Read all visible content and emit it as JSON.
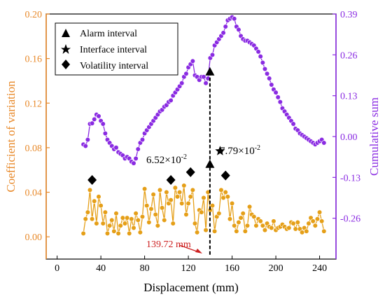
{
  "chart_data": {
    "type": "line",
    "xlabel": "Displacement (mm)",
    "ylabel_left": "Coefficient of variation",
    "ylabel_right": "Cumulative sum",
    "xlim": [
      -10,
      255
    ],
    "ylim_left": [
      -0.02,
      0.2
    ],
    "ylim_right": [
      -0.39,
      0.39
    ],
    "x_ticks": [
      0,
      40,
      80,
      120,
      160,
      200,
      240
    ],
    "y_left_ticks": [
      "0.00",
      "0.04",
      "0.08",
      "0.12",
      "0.16",
      "0.20"
    ],
    "y_right_ticks": [
      "-0.26",
      "-0.13",
      "0.00",
      "0.13",
      "0.26",
      "0.39"
    ],
    "colors": {
      "cv": "#e59f18",
      "cusum": "#8a2be2",
      "axis_left": "#e8892a",
      "axis_right": "#8a2be2",
      "annotation": "#cc1f1f",
      "marker": "#000000"
    },
    "legend": {
      "position": "top-left",
      "entries": [
        {
          "label": "Alarm interval",
          "marker": "triangle"
        },
        {
          "label": "Interface interval",
          "marker": "star"
        },
        {
          "label": "Volatility interval",
          "marker": "diamond"
        }
      ]
    },
    "series": [
      {
        "axis": "left",
        "x": [
          24,
          26,
          28,
          30,
          32,
          34,
          36,
          38,
          40,
          42,
          44,
          46,
          48,
          50,
          52,
          54,
          56,
          58,
          60,
          62,
          64,
          66,
          68,
          70,
          72,
          74,
          76,
          78,
          80,
          82,
          84,
          86,
          88,
          90,
          92,
          94,
          96,
          98,
          100,
          102,
          104,
          106,
          108,
          110,
          112,
          114,
          116,
          118,
          120,
          122,
          124,
          126,
          128,
          130,
          132,
          134,
          136,
          138,
          140,
          142,
          144,
          146,
          148,
          150,
          152,
          154,
          156,
          158,
          160,
          162,
          164,
          166,
          168,
          170,
          172,
          174,
          176,
          178,
          180,
          182,
          184,
          186,
          188,
          190,
          192,
          194,
          196,
          198,
          200,
          202,
          204,
          206,
          208,
          210,
          212,
          214,
          216,
          218,
          220,
          222,
          224,
          226,
          228,
          230,
          232,
          234,
          236,
          238,
          240,
          242,
          244
        ],
        "y": [
          0.003,
          0.016,
          0.022,
          0.042,
          0.016,
          0.032,
          0.012,
          0.036,
          0.028,
          0.012,
          0.022,
          0.003,
          0.01,
          0.015,
          0.005,
          0.021,
          0.003,
          0.01,
          0.017,
          0.012,
          0.017,
          0.003,
          0.016,
          0.008,
          0.021,
          0.015,
          0.004,
          0.018,
          0.043,
          0.028,
          0.013,
          0.025,
          0.038,
          0.02,
          0.01,
          0.042,
          0.026,
          0.015,
          0.04,
          0.03,
          0.033,
          0.012,
          0.044,
          0.036,
          0.04,
          0.03,
          0.046,
          0.02,
          0.03,
          0.036,
          0.042,
          0.012,
          0.004,
          0.024,
          0.022,
          0.035,
          0.006,
          0.04,
          0.024,
          0.028,
          0.005,
          0.018,
          0.021,
          0.042,
          0.035,
          0.04,
          0.036,
          0.016,
          0.03,
          0.01,
          0.005,
          0.013,
          0.017,
          0.021,
          0.005,
          0.01,
          0.027,
          0.02,
          0.018,
          0.01,
          0.016,
          0.014,
          0.01,
          0.006,
          0.012,
          0.009,
          0.008,
          0.014,
          0.006,
          0.008,
          0.009,
          0.011,
          0.009,
          0.007,
          0.008,
          0.013,
          0.012,
          0.007,
          0.013,
          0.007,
          0.004,
          0.008,
          0.005,
          0.012,
          0.017,
          0.014,
          0.01,
          0.016,
          0.022,
          0.014,
          0.005
        ]
      },
      {
        "axis": "right",
        "x": [
          24,
          26,
          28,
          30,
          32,
          34,
          36,
          38,
          40,
          42,
          44,
          46,
          48,
          50,
          52,
          54,
          56,
          58,
          60,
          62,
          64,
          66,
          68,
          70,
          72,
          74,
          76,
          78,
          80,
          82,
          84,
          86,
          88,
          90,
          92,
          94,
          96,
          98,
          100,
          102,
          104,
          106,
          108,
          110,
          112,
          114,
          116,
          118,
          120,
          122,
          124,
          126,
          128,
          130,
          132,
          134,
          136,
          138,
          140,
          142,
          144,
          146,
          148,
          150,
          152,
          154,
          156,
          158,
          160,
          162,
          164,
          166,
          168,
          170,
          172,
          174,
          176,
          178,
          180,
          182,
          184,
          186,
          188,
          190,
          192,
          194,
          196,
          198,
          200,
          202,
          204,
          206,
          208,
          210,
          212,
          214,
          216,
          218,
          220,
          222,
          224,
          226,
          228,
          230,
          232,
          234,
          236,
          238,
          240,
          242,
          244
        ],
        "y": [
          -0.025,
          -0.03,
          -0.01,
          0.04,
          0.042,
          0.055,
          0.07,
          0.065,
          0.05,
          0.04,
          0.01,
          -0.01,
          -0.02,
          -0.03,
          -0.04,
          -0.035,
          -0.05,
          -0.055,
          -0.06,
          -0.07,
          -0.065,
          -0.07,
          -0.08,
          -0.085,
          -0.07,
          -0.04,
          -0.02,
          -0.01,
          0.01,
          0.02,
          0.03,
          0.04,
          0.05,
          0.06,
          0.07,
          0.08,
          0.085,
          0.095,
          0.1,
          0.11,
          0.115,
          0.13,
          0.14,
          0.15,
          0.16,
          0.17,
          0.19,
          0.2,
          0.22,
          0.23,
          0.24,
          0.195,
          0.19,
          0.18,
          0.19,
          0.19,
          0.17,
          0.185,
          0.25,
          0.26,
          0.29,
          0.3,
          0.31,
          0.32,
          0.33,
          0.35,
          0.37,
          0.375,
          0.38,
          0.375,
          0.35,
          0.34,
          0.32,
          0.31,
          0.305,
          0.305,
          0.3,
          0.295,
          0.29,
          0.28,
          0.27,
          0.255,
          0.235,
          0.215,
          0.2,
          0.185,
          0.165,
          0.15,
          0.14,
          0.125,
          0.11,
          0.09,
          0.08,
          0.07,
          0.06,
          0.05,
          0.04,
          0.025,
          0.02,
          0.01,
          0.005,
          0.0,
          -0.005,
          -0.01,
          -0.015,
          -0.02,
          -0.025,
          -0.02,
          -0.015,
          -0.01,
          -0.02
        ]
      }
    ],
    "markers": [
      {
        "type": "triangle",
        "x": 139.72,
        "y": 0.148
      },
      {
        "type": "triangle",
        "x": 139.72,
        "y": 0.065
      },
      {
        "type": "star",
        "x": 149,
        "y": 0.077
      },
      {
        "type": "diamond",
        "x": 32,
        "y": 0.051
      },
      {
        "type": "diamond",
        "x": 104,
        "y": 0.051
      },
      {
        "type": "diamond",
        "x": 122,
        "y": 0.058
      },
      {
        "type": "diamond",
        "x": 154,
        "y": 0.055
      }
    ],
    "annotations": {
      "label_652": "6.52×10",
      "exp_652": "-2",
      "label_779": "7.79×10",
      "exp_779": "-2",
      "cut_label": "139.72 mm",
      "alarm_x": 139.72
    }
  }
}
